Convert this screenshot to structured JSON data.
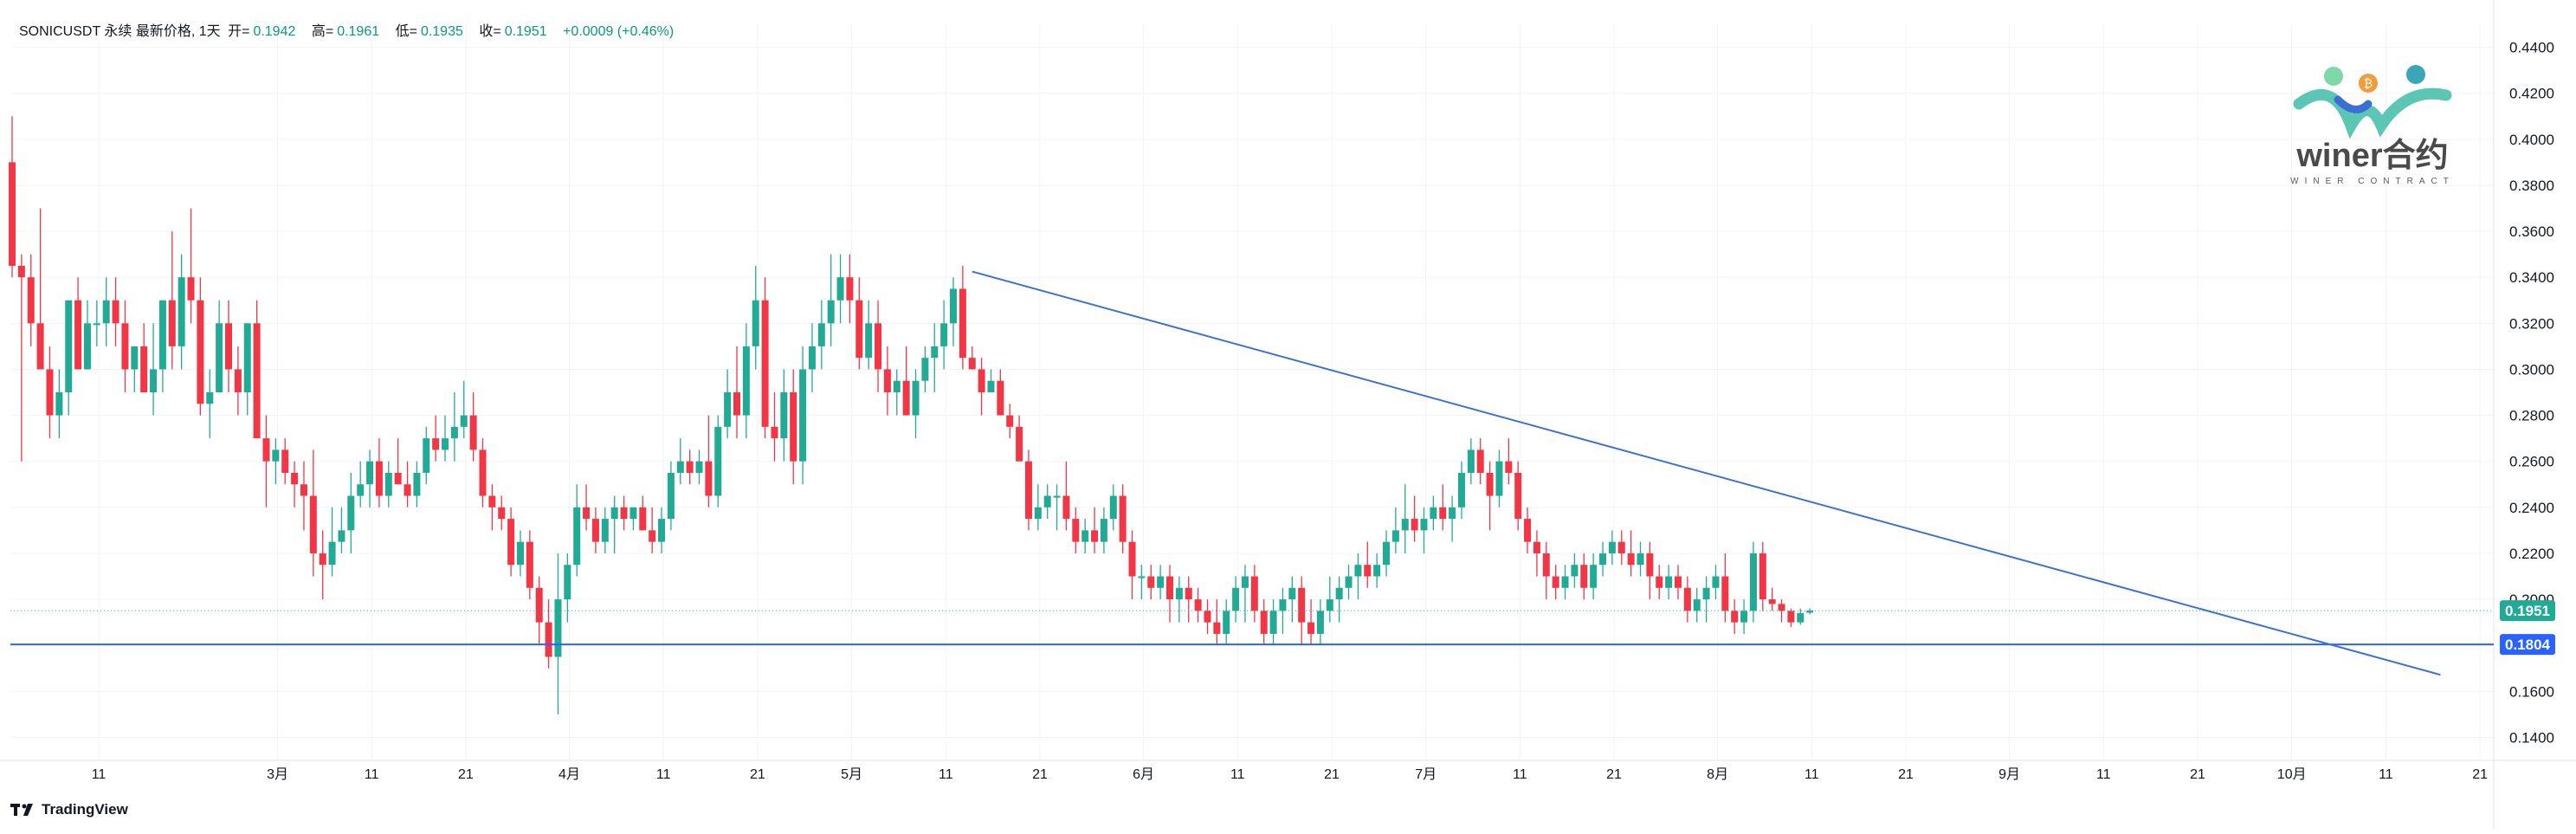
{
  "header": {
    "symbol": "SONICUSDT 永续 最新价格, 1天",
    "open_label": "开=",
    "open": "0.1942",
    "high_label": "高=",
    "high": "0.1961",
    "low_label": "低=",
    "low": "0.1935",
    "close_label": "收=",
    "close": "0.1951",
    "change": "+0.0009 (+0.46%)"
  },
  "footer": {
    "brand": "TradingView"
  },
  "watermark": {
    "name": "winer合约",
    "sub": "WINER CONTRACT"
  },
  "colors": {
    "up": "#22ab94",
    "down": "#f23645",
    "line": "#2962ff",
    "grid": "#f0f3fa",
    "trend": "#3a6fd8"
  },
  "chart_data": {
    "type": "candlestick",
    "title": "",
    "y_axis": {
      "min": 0.13,
      "max": 0.45,
      "ticks": [
        "0.4400",
        "0.4200",
        "0.4000",
        "0.3800",
        "0.3600",
        "0.3400",
        "0.3200",
        "0.3000",
        "0.2800",
        "0.2600",
        "0.2400",
        "0.2200",
        "0.2000",
        "0.1600",
        "0.1400"
      ]
    },
    "x_ticks": [
      {
        "label": "11",
        "day": 0
      },
      {
        "label": "3月",
        "day": 19
      },
      {
        "label": "11",
        "day": 29
      },
      {
        "label": "21",
        "day": 39
      },
      {
        "label": "4月",
        "day": 50
      },
      {
        "label": "11",
        "day": 60
      },
      {
        "label": "21",
        "day": 70
      },
      {
        "label": "5月",
        "day": 80
      },
      {
        "label": "11",
        "day": 90
      },
      {
        "label": "21",
        "day": 100
      },
      {
        "label": "6月",
        "day": 111
      },
      {
        "label": "11",
        "day": 121
      },
      {
        "label": "21",
        "day": 131
      },
      {
        "label": "7月",
        "day": 141
      },
      {
        "label": "11",
        "day": 151
      },
      {
        "label": "21",
        "day": 161
      },
      {
        "label": "8月",
        "day": 172
      },
      {
        "label": "11",
        "day": 182
      },
      {
        "label": "21",
        "day": 192
      },
      {
        "label": "9月",
        "day": 203
      },
      {
        "label": "11",
        "day": 213
      },
      {
        "label": "21",
        "day": 223
      },
      {
        "label": "10月",
        "day": 233
      },
      {
        "label": "11",
        "day": 243
      },
      {
        "label": "21",
        "day": 253
      }
    ],
    "price_labels": [
      {
        "value": 0.1951,
        "text": "0.1951",
        "color": "#22ab94"
      },
      {
        "value": 0.1804,
        "text": "0.1804",
        "color": "#2962ff"
      }
    ],
    "horizontal_line": 0.1804,
    "trendline": {
      "from": {
        "day": 102,
        "price": 0.3425
      },
      "to": {
        "day": 258,
        "price": 0.1672
      }
    },
    "candles": []
  }
}
